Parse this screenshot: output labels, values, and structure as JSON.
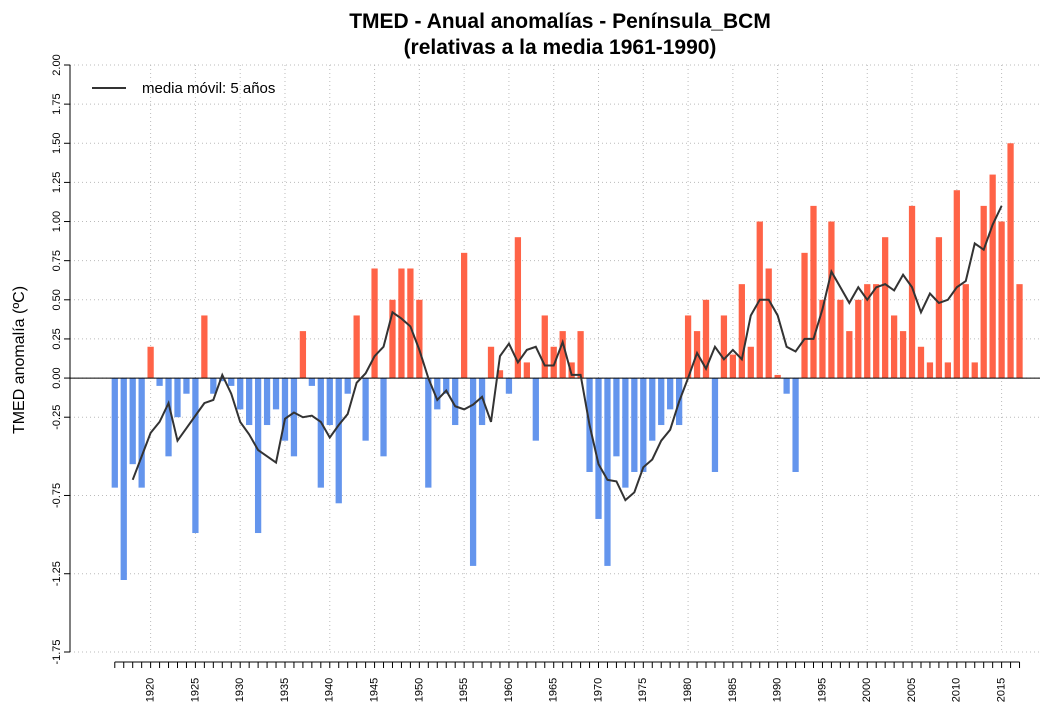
{
  "chart_data": {
    "type": "bar",
    "title": "TMED - Anual  anomalías - Península_BCM",
    "subtitle": "(relativas a la media 1961-1990)",
    "y_label": "TMED anomalía (ºC)",
    "x": [
      1916,
      1917,
      1918,
      1919,
      1920,
      1921,
      1922,
      1923,
      1924,
      1925,
      1926,
      1927,
      1928,
      1929,
      1930,
      1931,
      1932,
      1933,
      1934,
      1935,
      1936,
      1937,
      1938,
      1939,
      1940,
      1941,
      1942,
      1943,
      1944,
      1945,
      1946,
      1947,
      1948,
      1949,
      1950,
      1951,
      1952,
      1953,
      1954,
      1955,
      1956,
      1957,
      1958,
      1959,
      1960,
      1961,
      1962,
      1963,
      1964,
      1965,
      1966,
      1967,
      1968,
      1969,
      1970,
      1971,
      1972,
      1973,
      1974,
      1975,
      1976,
      1977,
      1978,
      1979,
      1980,
      1981,
      1982,
      1983,
      1984,
      1985,
      1986,
      1987,
      1988,
      1989,
      1990,
      1991,
      1992,
      1993,
      1994,
      1995,
      1996,
      1997,
      1998,
      1999,
      2000,
      2001,
      2002,
      2003,
      2004,
      2005,
      2006,
      2007,
      2008,
      2009,
      2010,
      2011,
      2012,
      2013,
      2014,
      2015,
      2016,
      2017
    ],
    "values": [
      -0.7,
      -1.29,
      -0.55,
      -0.7,
      0.2,
      -0.05,
      -0.5,
      -0.25,
      -0.1,
      -0.99,
      0.4,
      -0.1,
      -0.02,
      -0.05,
      -0.2,
      -0.3,
      -0.99,
      -0.3,
      -0.2,
      -0.4,
      -0.5,
      0.3,
      -0.05,
      -0.7,
      -0.3,
      -0.8,
      -0.1,
      0.4,
      -0.4,
      0.7,
      -0.5,
      0.5,
      0.7,
      0.7,
      0.5,
      -0.7,
      -0.2,
      -0.1,
      -0.3,
      0.8,
      -1.2,
      -0.3,
      0.2,
      0.05,
      -0.1,
      0.9,
      0.1,
      -0.4,
      0.4,
      0.2,
      0.3,
      0.1,
      0.3,
      -0.6,
      -0.9,
      -1.2,
      -0.5,
      -0.7,
      -0.6,
      -0.6,
      -0.4,
      -0.3,
      -0.2,
      -0.3,
      0.4,
      0.3,
      0.5,
      -0.6,
      0.4,
      0.15,
      0.6,
      0.2,
      1.0,
      0.7,
      0.02,
      -0.1,
      -0.6,
      0.8,
      1.1,
      0.5,
      1.0,
      0.5,
      0.3,
      0.5,
      0.6,
      0.6,
      0.9,
      0.4,
      0.3,
      1.1,
      0.2,
      0.1,
      0.9,
      0.1,
      1.2,
      0.6,
      0.1,
      1.1,
      1.3,
      1.0,
      1.5,
      0.6
    ],
    "positive_color": "#ff6347",
    "negative_color": "#6495ed",
    "moving_average": {
      "name": "media móvil: 5 años",
      "color": "#333333",
      "values": [
        null,
        null,
        -0.65,
        -0.5,
        -0.35,
        -0.28,
        -0.16,
        -0.4,
        -0.32,
        -0.24,
        -0.16,
        -0.14,
        0.02,
        -0.1,
        -0.28,
        -0.36,
        -0.46,
        -0.5,
        -0.54,
        -0.26,
        -0.22,
        -0.25,
        -0.24,
        -0.28,
        -0.38,
        -0.3,
        -0.23,
        -0.03,
        0.03,
        0.14,
        0.2,
        0.42,
        0.38,
        0.33,
        0.18,
        0.0,
        -0.14,
        -0.08,
        -0.18,
        -0.2,
        -0.17,
        -0.12,
        -0.28,
        0.14,
        0.22,
        0.1,
        0.18,
        0.2,
        0.08,
        0.08,
        0.23,
        0.02,
        0.02,
        -0.3,
        -0.55,
        -0.65,
        -0.66,
        -0.78,
        -0.73,
        -0.57,
        -0.52,
        -0.4,
        -0.33,
        -0.15,
        0.0,
        0.16,
        0.06,
        0.2,
        0.12,
        0.18,
        0.12,
        0.4,
        0.5,
        0.5,
        0.4,
        0.2,
        0.17,
        0.25,
        0.25,
        0.44,
        0.68,
        0.58,
        0.48,
        0.58,
        0.5,
        0.58,
        0.6,
        0.56,
        0.66,
        0.58,
        0.42,
        0.54,
        0.48,
        0.5,
        0.58,
        0.62,
        0.86,
        0.82,
        0.98,
        1.1,
        null,
        null
      ]
    },
    "legend": "top-left",
    "xlim": [
      1911,
      2020
    ],
    "xticks": [
      1920,
      1925,
      1930,
      1935,
      1940,
      1945,
      1950,
      1955,
      1960,
      1965,
      1970,
      1975,
      1980,
      1985,
      1990,
      1995,
      2000,
      2005,
      2010,
      2015
    ],
    "ylim": [
      -1.75,
      2.0
    ],
    "yticks": [
      {
        "value": 2,
        "label": "2.00"
      },
      1.75,
      {
        "value": 1.5,
        "label": "1.50"
      },
      1.25,
      {
        "value": 1,
        "label": "1.00"
      },
      0.75,
      {
        "value": 0.5,
        "label": "0.50"
      },
      0.25,
      {
        "value": 0,
        "label": "0.00"
      },
      -0.25,
      -0.75,
      -1.25,
      -1.75
    ],
    "grid": true
  }
}
